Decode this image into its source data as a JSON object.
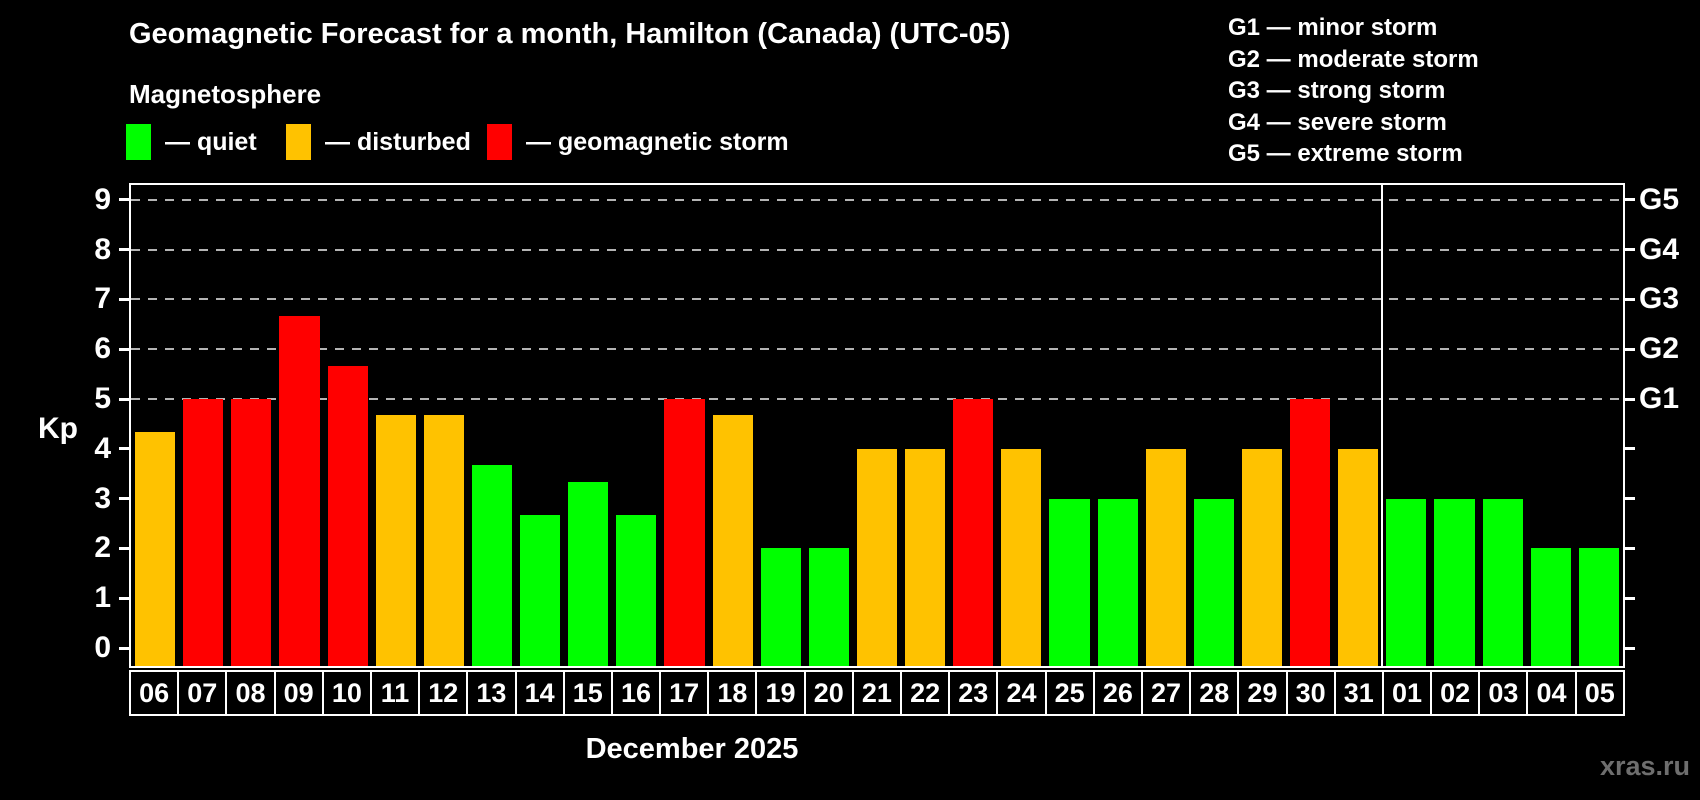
{
  "title": "Geomagnetic Forecast for a month, Hamilton (Canada) (UTC-05)",
  "subtitle": "Magnetosphere",
  "legend": {
    "quiet": {
      "label": "— quiet",
      "color": "#00ff00"
    },
    "disturbed": {
      "label": "— disturbed",
      "color": "#ffc200"
    },
    "storm": {
      "label": "— geomagnetic storm",
      "color": "#ff0000"
    }
  },
  "g_scale_legend": [
    "G1 — minor storm",
    "G2 — moderate storm",
    "G3 — strong storm",
    "G4 — severe storm",
    "G5 — extreme storm"
  ],
  "y_axis": {
    "label": "Kp",
    "ticks": [
      0,
      1,
      2,
      3,
      4,
      5,
      6,
      7,
      8,
      9
    ]
  },
  "right_axis": {
    "labels": [
      "G1",
      "G2",
      "G3",
      "G4",
      "G5"
    ],
    "at_kp": [
      5,
      6,
      7,
      8,
      9
    ]
  },
  "month_label": "December 2025",
  "watermark": "xras.ru",
  "chart_data": {
    "type": "bar",
    "title": "Geomagnetic Forecast for a month, Hamilton (Canada) (UTC-05)",
    "xlabel": "December 2025",
    "ylabel": "Kp",
    "ylim": [
      0,
      9
    ],
    "grid_at_kp": [
      5,
      6,
      7,
      8,
      9
    ],
    "legend_position": "top",
    "categories": [
      "06",
      "07",
      "08",
      "09",
      "10",
      "11",
      "12",
      "13",
      "14",
      "15",
      "16",
      "17",
      "18",
      "19",
      "20",
      "21",
      "22",
      "23",
      "24",
      "25",
      "26",
      "27",
      "28",
      "29",
      "30",
      "31",
      "01",
      "02",
      "03",
      "04",
      "05"
    ],
    "values": [
      4.33,
      5,
      5,
      6.67,
      5.67,
      4.67,
      4.67,
      3.67,
      2.67,
      3.33,
      2.67,
      5,
      4.67,
      2,
      2,
      4,
      4,
      5,
      4,
      3,
      3,
      4,
      3,
      4,
      5,
      4,
      3,
      3,
      3,
      2,
      2
    ],
    "statuses": [
      "disturbed",
      "storm",
      "storm",
      "storm",
      "storm",
      "disturbed",
      "disturbed",
      "quiet",
      "quiet",
      "quiet",
      "quiet",
      "storm",
      "disturbed",
      "quiet",
      "quiet",
      "disturbed",
      "disturbed",
      "storm",
      "disturbed",
      "quiet",
      "quiet",
      "disturbed",
      "quiet",
      "disturbed",
      "storm",
      "disturbed",
      "quiet",
      "quiet",
      "quiet",
      "quiet",
      "quiet"
    ],
    "month_separator_after_category": "31",
    "colors": {
      "quiet": "#00ff00",
      "disturbed": "#ffc200",
      "storm": "#ff0000"
    }
  }
}
